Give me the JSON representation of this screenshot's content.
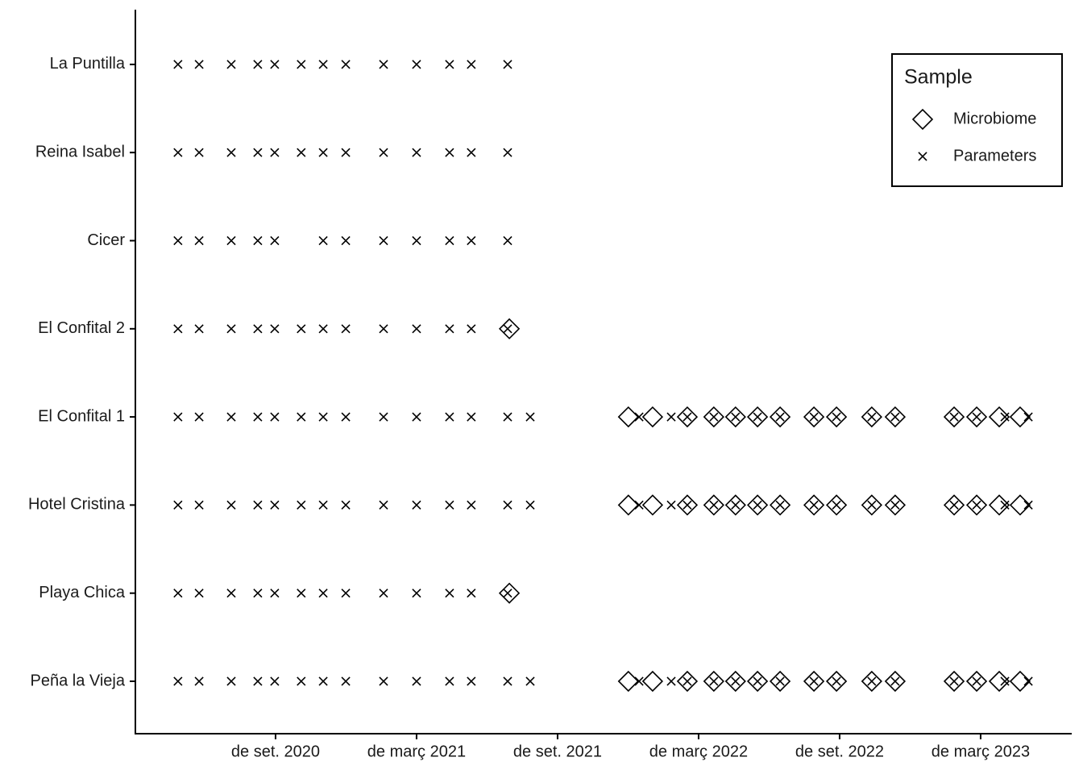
{
  "chart_data": {
    "type": "scatter",
    "categories": [
      "Peña la Vieja",
      "Playa Chica",
      "Hotel Cristina",
      "El Confital 1",
      "El Confital 2",
      "Cicer",
      "Reina Isabel",
      "La Puntilla"
    ],
    "xlim": [
      2020.17,
      2023.49
    ],
    "xticks": [
      {
        "value": 2020.667,
        "label": "de set. 2020"
      },
      {
        "value": 2021.167,
        "label": "de març 2021"
      },
      {
        "value": 2021.667,
        "label": "de set. 2021"
      },
      {
        "value": 2022.167,
        "label": "de març 2022"
      },
      {
        "value": 2022.667,
        "label": "de set. 2022"
      },
      {
        "value": 2023.167,
        "label": "de març 2023"
      }
    ],
    "legend_title": "Sample",
    "legend_position": "top-right",
    "series": [
      {
        "name": "Microbiome",
        "shape": "diamond",
        "color": "#000000",
        "x": [
          [
            2021.918,
            2022.004,
            2022.127,
            2022.221,
            2022.298,
            2022.376,
            2022.456,
            2022.576,
            2022.656,
            2022.781,
            2022.864,
            2023.073,
            2023.153,
            2023.233,
            2023.307
          ],
          [
            2021.496
          ],
          [
            2021.918,
            2022.004,
            2022.127,
            2022.221,
            2022.298,
            2022.376,
            2022.456,
            2022.576,
            2022.656,
            2022.781,
            2022.864,
            2023.073,
            2023.153,
            2023.233,
            2023.307
          ],
          [
            2021.918,
            2022.004,
            2022.127,
            2022.221,
            2022.298,
            2022.376,
            2022.456,
            2022.576,
            2022.656,
            2022.781,
            2022.864,
            2023.073,
            2023.153,
            2023.233,
            2023.307
          ],
          [
            2021.496
          ],
          [],
          [],
          []
        ]
      },
      {
        "name": "Parameters",
        "shape": "cross",
        "color": "#000000",
        "x": [
          [
            2020.321,
            2020.396,
            2020.51,
            2020.604,
            2020.664,
            2020.758,
            2020.836,
            2020.916,
            2021.05,
            2021.167,
            2021.284,
            2021.361,
            2021.49,
            2021.57,
            2021.956,
            2022.07,
            2022.127,
            2022.221,
            2022.298,
            2022.376,
            2022.456,
            2022.576,
            2022.656,
            2022.781,
            2022.864,
            2023.073,
            2023.153,
            2023.253,
            2023.336
          ],
          [
            2020.321,
            2020.396,
            2020.51,
            2020.604,
            2020.664,
            2020.758,
            2020.836,
            2020.916,
            2021.05,
            2021.167,
            2021.284,
            2021.361,
            2021.49
          ],
          [
            2020.321,
            2020.396,
            2020.51,
            2020.604,
            2020.664,
            2020.758,
            2020.836,
            2020.916,
            2021.05,
            2021.167,
            2021.284,
            2021.361,
            2021.49,
            2021.57,
            2021.956,
            2022.07,
            2022.127,
            2022.221,
            2022.298,
            2022.376,
            2022.456,
            2022.576,
            2022.656,
            2022.781,
            2022.864,
            2023.073,
            2023.153,
            2023.253,
            2023.336
          ],
          [
            2020.321,
            2020.396,
            2020.51,
            2020.604,
            2020.664,
            2020.758,
            2020.836,
            2020.916,
            2021.05,
            2021.167,
            2021.284,
            2021.361,
            2021.49,
            2021.57,
            2021.956,
            2022.07,
            2022.127,
            2022.221,
            2022.298,
            2022.376,
            2022.456,
            2022.576,
            2022.656,
            2022.781,
            2022.864,
            2023.073,
            2023.153,
            2023.253,
            2023.336
          ],
          [
            2020.321,
            2020.396,
            2020.51,
            2020.604,
            2020.664,
            2020.758,
            2020.836,
            2020.916,
            2021.05,
            2021.167,
            2021.284,
            2021.361,
            2021.49
          ],
          [
            2020.321,
            2020.396,
            2020.51,
            2020.604,
            2020.664,
            2020.836,
            2020.916,
            2021.05,
            2021.167,
            2021.284,
            2021.361,
            2021.49
          ],
          [
            2020.321,
            2020.396,
            2020.51,
            2020.604,
            2020.664,
            2020.758,
            2020.836,
            2020.916,
            2021.05,
            2021.167,
            2021.284,
            2021.361,
            2021.49
          ],
          [
            2020.321,
            2020.396,
            2020.51,
            2020.604,
            2020.664,
            2020.758,
            2020.836,
            2020.916,
            2021.05,
            2021.167,
            2021.284,
            2021.361,
            2021.49
          ]
        ]
      }
    ]
  }
}
